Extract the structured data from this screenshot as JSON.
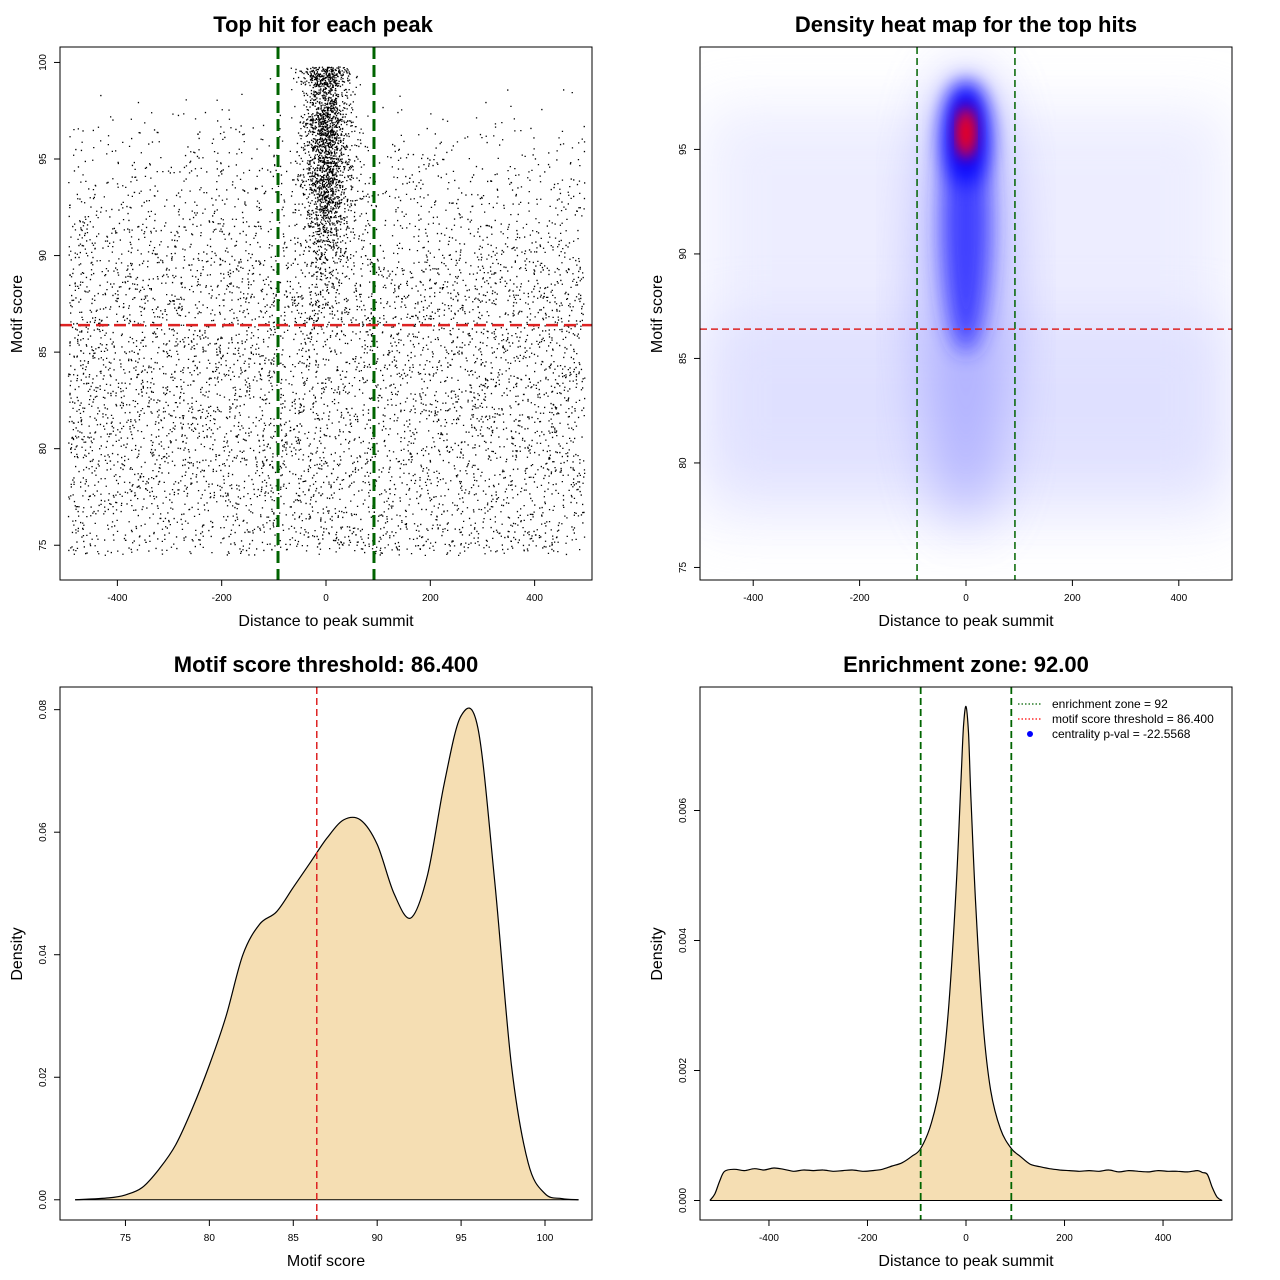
{
  "colors": {
    "threshold": "#dd2222",
    "zone": "#006400",
    "fill": "#f5deb3",
    "heat_low": "#ffffff",
    "heat_mid": "#0000ff",
    "heat_high": "#ff0000"
  },
  "chart_data": [
    {
      "id": "p1",
      "type": "scatter",
      "title": "Top hit for each peak",
      "xlabel": "Distance to peak summit",
      "ylabel": "Motif score",
      "xlim": [
        -510,
        510
      ],
      "ylim": [
        73.2,
        100.8
      ],
      "xticks": [
        -400,
        -200,
        0,
        200,
        400
      ],
      "yticks": [
        75,
        80,
        85,
        90,
        95,
        100
      ],
      "vlines": [
        -92,
        92
      ],
      "hline": 86.4,
      "approximate_distribution": {
        "n_background": 6500,
        "background_x_range": [
          -495,
          495
        ],
        "background_y_range": [
          74.5,
          98.8
        ],
        "n_central": 4800,
        "central_x_center": 0,
        "central_x_sd": 22,
        "central_y_range": [
          84.5,
          99.8
        ],
        "central_y_mode": 95.5
      }
    },
    {
      "id": "p2",
      "type": "heatmap",
      "title": "Density heat map for the top hits",
      "xlabel": "Distance to peak summit",
      "ylabel": "Motif score",
      "xlim": [
        -500,
        500
      ],
      "ylim": [
        74.4,
        99.9
      ],
      "xticks": [
        -400,
        -200,
        0,
        200,
        400
      ],
      "yticks": [
        75,
        80,
        85,
        90,
        95
      ],
      "vlines": [
        -92,
        92
      ],
      "hline": 86.4,
      "density_peak": {
        "x": 0,
        "y": 95.8
      }
    },
    {
      "id": "p3",
      "type": "area",
      "title": "Motif score threshold: 86.400",
      "xlabel": "Motif score",
      "ylabel": "Density",
      "xlim": [
        71.1,
        102.8
      ],
      "ylim": [
        -0.0033,
        0.0837
      ],
      "xticks": [
        75,
        80,
        85,
        90,
        95,
        100
      ],
      "yticks": [
        0.0,
        0.02,
        0.04,
        0.06,
        0.08
      ],
      "ytick_labels": [
        "0.00",
        "0.02",
        "0.04",
        "0.06",
        "0.08"
      ],
      "vline": 86.4,
      "x": [
        72,
        74,
        75,
        76,
        77,
        78,
        79,
        80,
        81,
        82,
        83,
        84,
        85,
        86,
        87,
        88,
        89,
        90,
        91,
        92,
        93,
        94,
        95,
        96,
        97,
        98,
        99,
        100,
        101,
        102
      ],
      "y": [
        0.0,
        0.0003,
        0.0008,
        0.002,
        0.005,
        0.009,
        0.015,
        0.022,
        0.03,
        0.04,
        0.045,
        0.047,
        0.051,
        0.055,
        0.059,
        0.062,
        0.062,
        0.058,
        0.05,
        0.046,
        0.053,
        0.068,
        0.079,
        0.077,
        0.052,
        0.022,
        0.006,
        0.001,
        0.0002,
        0.0
      ]
    },
    {
      "id": "p4",
      "type": "area",
      "title": "Enrichment zone: 92.00",
      "xlabel": "Distance to peak summit",
      "ylabel": "Density",
      "xlim": [
        -540,
        540
      ],
      "ylim": [
        -0.0003,
        0.0079
      ],
      "xticks": [
        -400,
        -200,
        0,
        200,
        400
      ],
      "yticks": [
        0.0,
        0.002,
        0.004,
        0.006
      ],
      "ytick_labels": [
        "0.000",
        "0.002",
        "0.004",
        "0.006"
      ],
      "vlines": [
        -92,
        92
      ],
      "x": [
        -520,
        -510,
        -500,
        -490,
        -470,
        -450,
        -430,
        -410,
        -390,
        -370,
        -350,
        -330,
        -310,
        -290,
        -270,
        -250,
        -230,
        -210,
        -190,
        -170,
        -150,
        -130,
        -110,
        -92,
        -70,
        -50,
        -35,
        -20,
        -10,
        -5,
        0,
        5,
        10,
        20,
        35,
        50,
        70,
        92,
        110,
        130,
        150,
        170,
        190,
        210,
        230,
        250,
        270,
        290,
        310,
        330,
        350,
        370,
        390,
        410,
        430,
        450,
        470,
        480,
        490,
        500,
        510,
        520
      ],
      "y": [
        0.0,
        0.0001,
        0.0003,
        0.00045,
        0.00048,
        0.00046,
        0.00049,
        0.00047,
        0.0005,
        0.00048,
        0.00045,
        0.00047,
        0.00046,
        0.00047,
        0.00045,
        0.00046,
        0.00047,
        0.00045,
        0.00046,
        0.00048,
        0.00053,
        0.00058,
        0.00068,
        0.0008,
        0.0012,
        0.0019,
        0.003,
        0.0048,
        0.0065,
        0.0073,
        0.0076,
        0.0072,
        0.0062,
        0.0045,
        0.0027,
        0.0017,
        0.0011,
        0.0008,
        0.00068,
        0.00056,
        0.00052,
        0.00049,
        0.00047,
        0.00046,
        0.00045,
        0.00046,
        0.00045,
        0.00047,
        0.00044,
        0.00046,
        0.00045,
        0.00044,
        0.00046,
        0.00045,
        0.00045,
        0.00044,
        0.00046,
        0.00043,
        0.0004,
        0.0002,
        5e-05,
        0.0
      ],
      "legend": {
        "placement": "top-right",
        "items": [
          {
            "label": "enrichment zone = 92",
            "style": "dotted",
            "color": "#006400"
          },
          {
            "label": "motif score threshold = 86.400",
            "style": "dotted",
            "color": "#ff0000"
          },
          {
            "label": "centrality p-val = -22.5568",
            "style": "point",
            "color": "#0000ff"
          }
        ]
      }
    }
  ]
}
